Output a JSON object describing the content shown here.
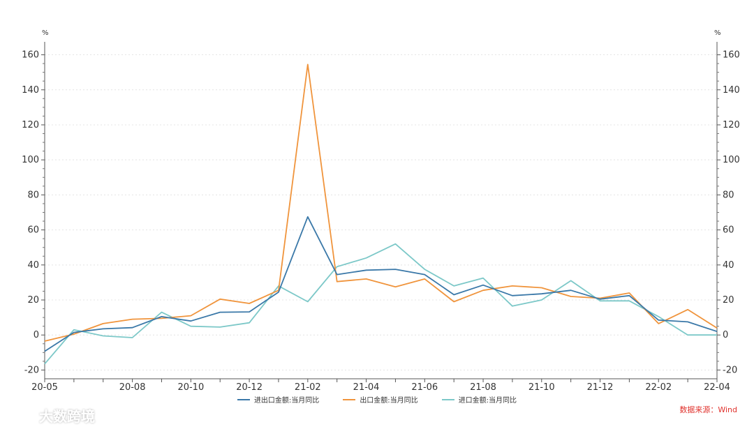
{
  "chart_data": {
    "type": "line",
    "y_unit_left": "%",
    "y_unit_right": "%",
    "ylim": [
      -25,
      165
    ],
    "yticks": [
      -20,
      0,
      20,
      40,
      60,
      80,
      100,
      120,
      140,
      160
    ],
    "x": [
      "20-05",
      "20-06",
      "20-07",
      "20-08",
      "20-09",
      "20-10",
      "20-11",
      "20-12",
      "21-01",
      "21-02",
      "21-03",
      "21-04",
      "21-05",
      "21-06",
      "21-07",
      "21-08",
      "21-09",
      "21-10",
      "21-11",
      "21-12",
      "22-01",
      "22-02",
      "22-03",
      "22-04"
    ],
    "xtick_labels": [
      "20-05",
      "20-08",
      "20-10",
      "20-12",
      "21-02",
      "21-04",
      "21-06",
      "21-08",
      "21-10",
      "21-12",
      "22-02",
      "22-04"
    ],
    "series": [
      {
        "name": "进出口金额:当月同比",
        "color": "#3a78a8",
        "values": [
          -9.3,
          1.5,
          3.5,
          4.2,
          10.5,
          8.0,
          13.0,
          13.2,
          24.5,
          67.5,
          34.5,
          37.0,
          37.5,
          34.5,
          23.0,
          28.5,
          22.5,
          23.5,
          25.5,
          20.5,
          22.5,
          8.5,
          7.5,
          2.0
        ]
      },
      {
        "name": "出口金额:当月同比",
        "color": "#f0943c",
        "values": [
          -3.5,
          0.5,
          6.5,
          9.0,
          9.5,
          11.0,
          20.5,
          18.0,
          25.5,
          154.5,
          30.5,
          32.0,
          27.5,
          32.0,
          19.0,
          25.5,
          28.0,
          27.0,
          22.0,
          21.0,
          24.0,
          6.5,
          14.5,
          4.0
        ]
      },
      {
        "name": "进口金额:当月同比",
        "color": "#7cc8c8",
        "values": [
          -16.5,
          3.0,
          -0.5,
          -1.5,
          13.0,
          5.0,
          4.5,
          7.0,
          28.0,
          19.0,
          39.0,
          44.0,
          52.0,
          37.5,
          28.0,
          32.5,
          16.5,
          20.0,
          31.0,
          19.5,
          19.5,
          10.5,
          0.0,
          0.0
        ]
      }
    ]
  },
  "source_text": "数据来源：Wind",
  "watermark_text": "大数跨境"
}
